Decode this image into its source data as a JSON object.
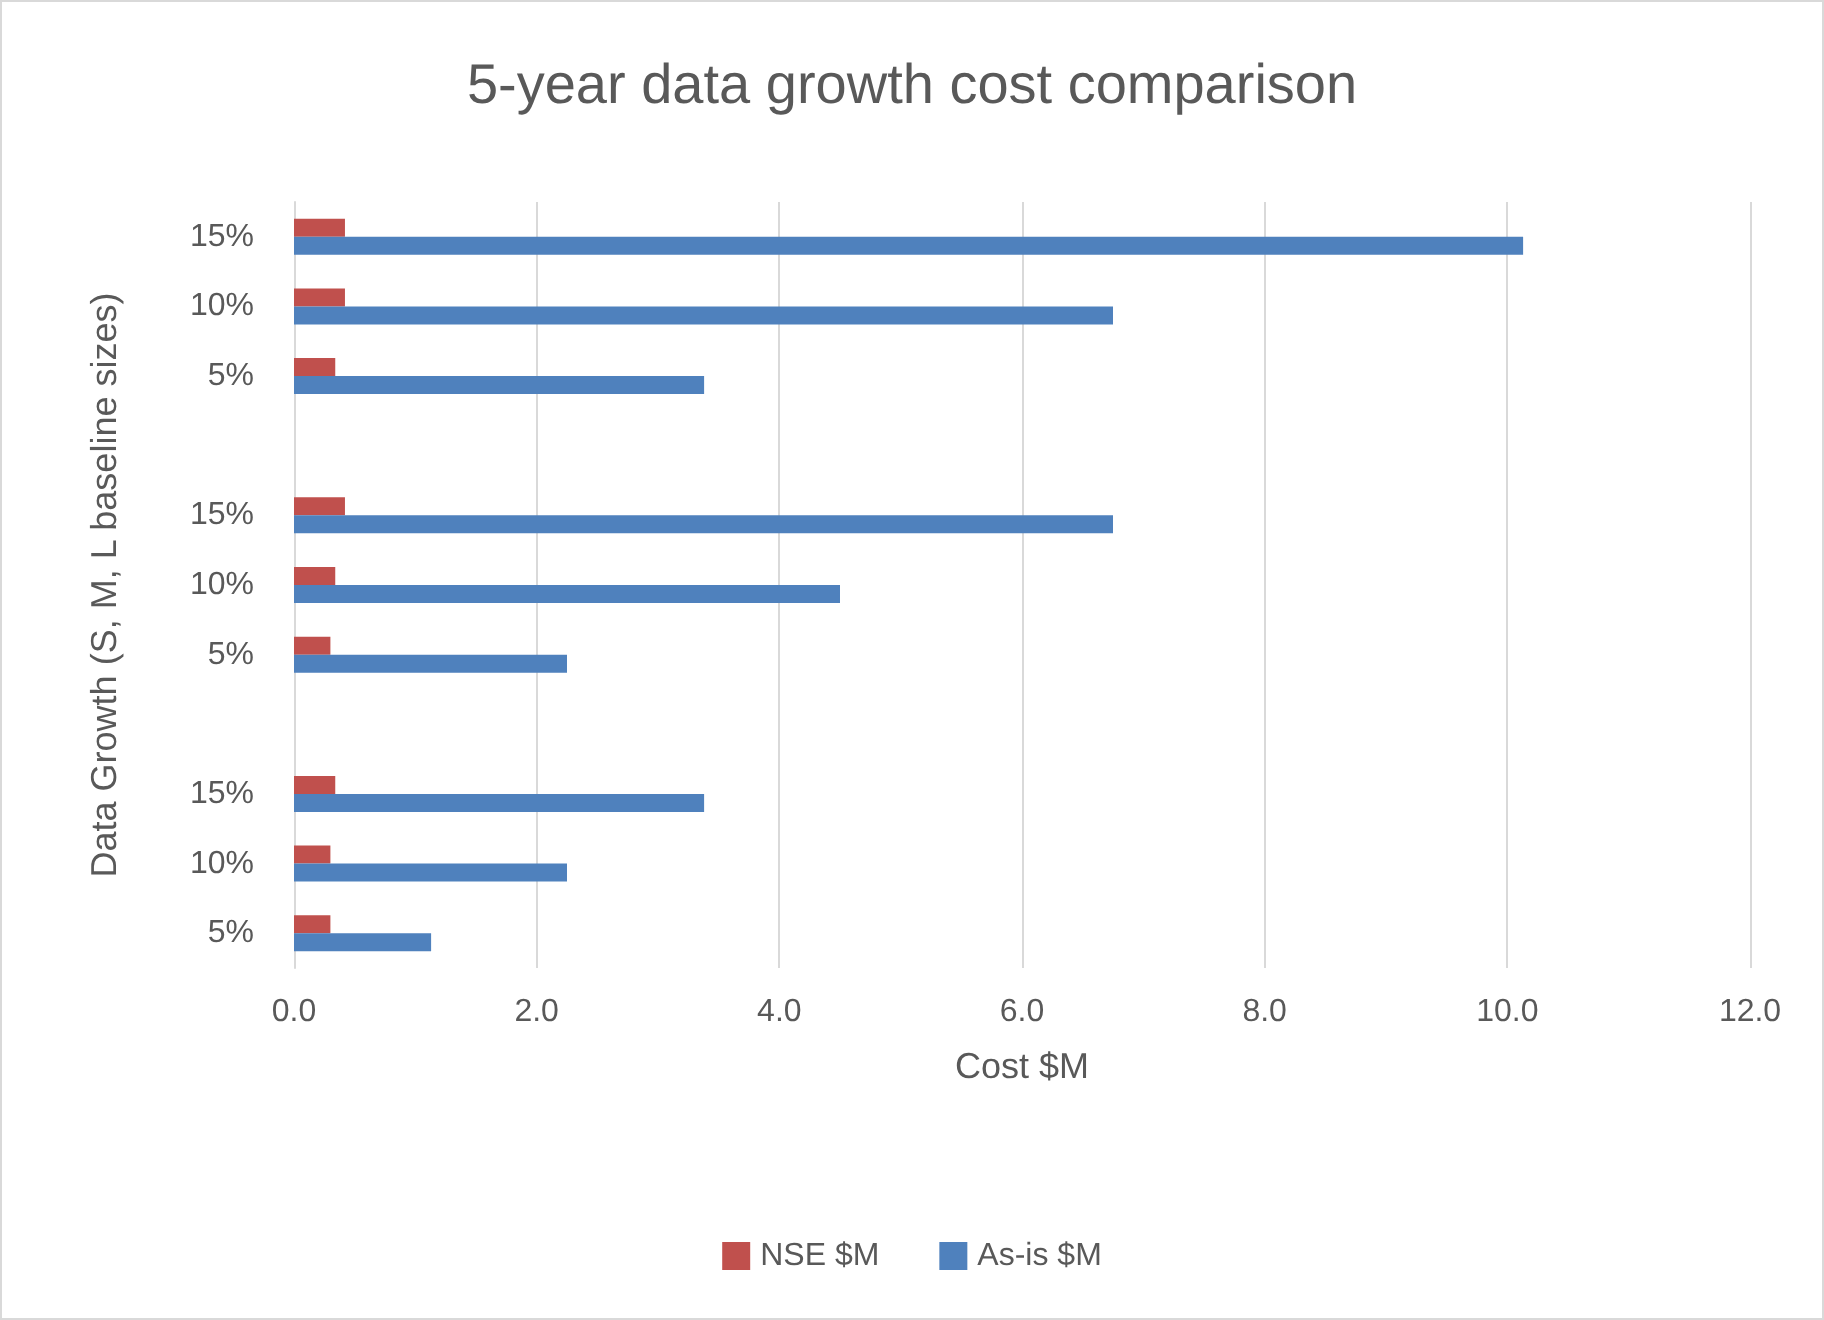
{
  "chart_data": {
    "type": "bar",
    "orientation": "horizontal",
    "title": "5-year data growth cost comparison",
    "xlabel": "Cost $M",
    "ylabel": "Data Growth (S, M, L baseline sizes)",
    "categories": [
      "15%",
      "10%",
      "5%",
      null,
      "15%",
      "10%",
      "5%",
      null,
      "15%",
      "10%",
      "5%"
    ],
    "series": [
      {
        "name": "NSE $M",
        "color": "#c0504d",
        "values": [
          0.42,
          0.42,
          0.34,
          null,
          0.42,
          0.34,
          0.3,
          null,
          0.34,
          0.3,
          0.3
        ]
      },
      {
        "name": "As-is $M",
        "color": "#4f81bd",
        "values": [
          10.13,
          6.75,
          3.38,
          null,
          6.75,
          4.5,
          2.25,
          null,
          3.38,
          2.25,
          1.13
        ]
      }
    ],
    "xlim": [
      0,
      12
    ],
    "xticks": [
      {
        "value": 0,
        "label": "0.0"
      },
      {
        "value": 2,
        "label": "2.0"
      },
      {
        "value": 4,
        "label": "4.0"
      },
      {
        "value": 6,
        "label": "6.0"
      },
      {
        "value": 8,
        "label": "8.0"
      },
      {
        "value": 10,
        "label": "10.0"
      },
      {
        "value": 12,
        "label": "12.0"
      }
    ],
    "grid": "x",
    "legend": "bottom"
  }
}
